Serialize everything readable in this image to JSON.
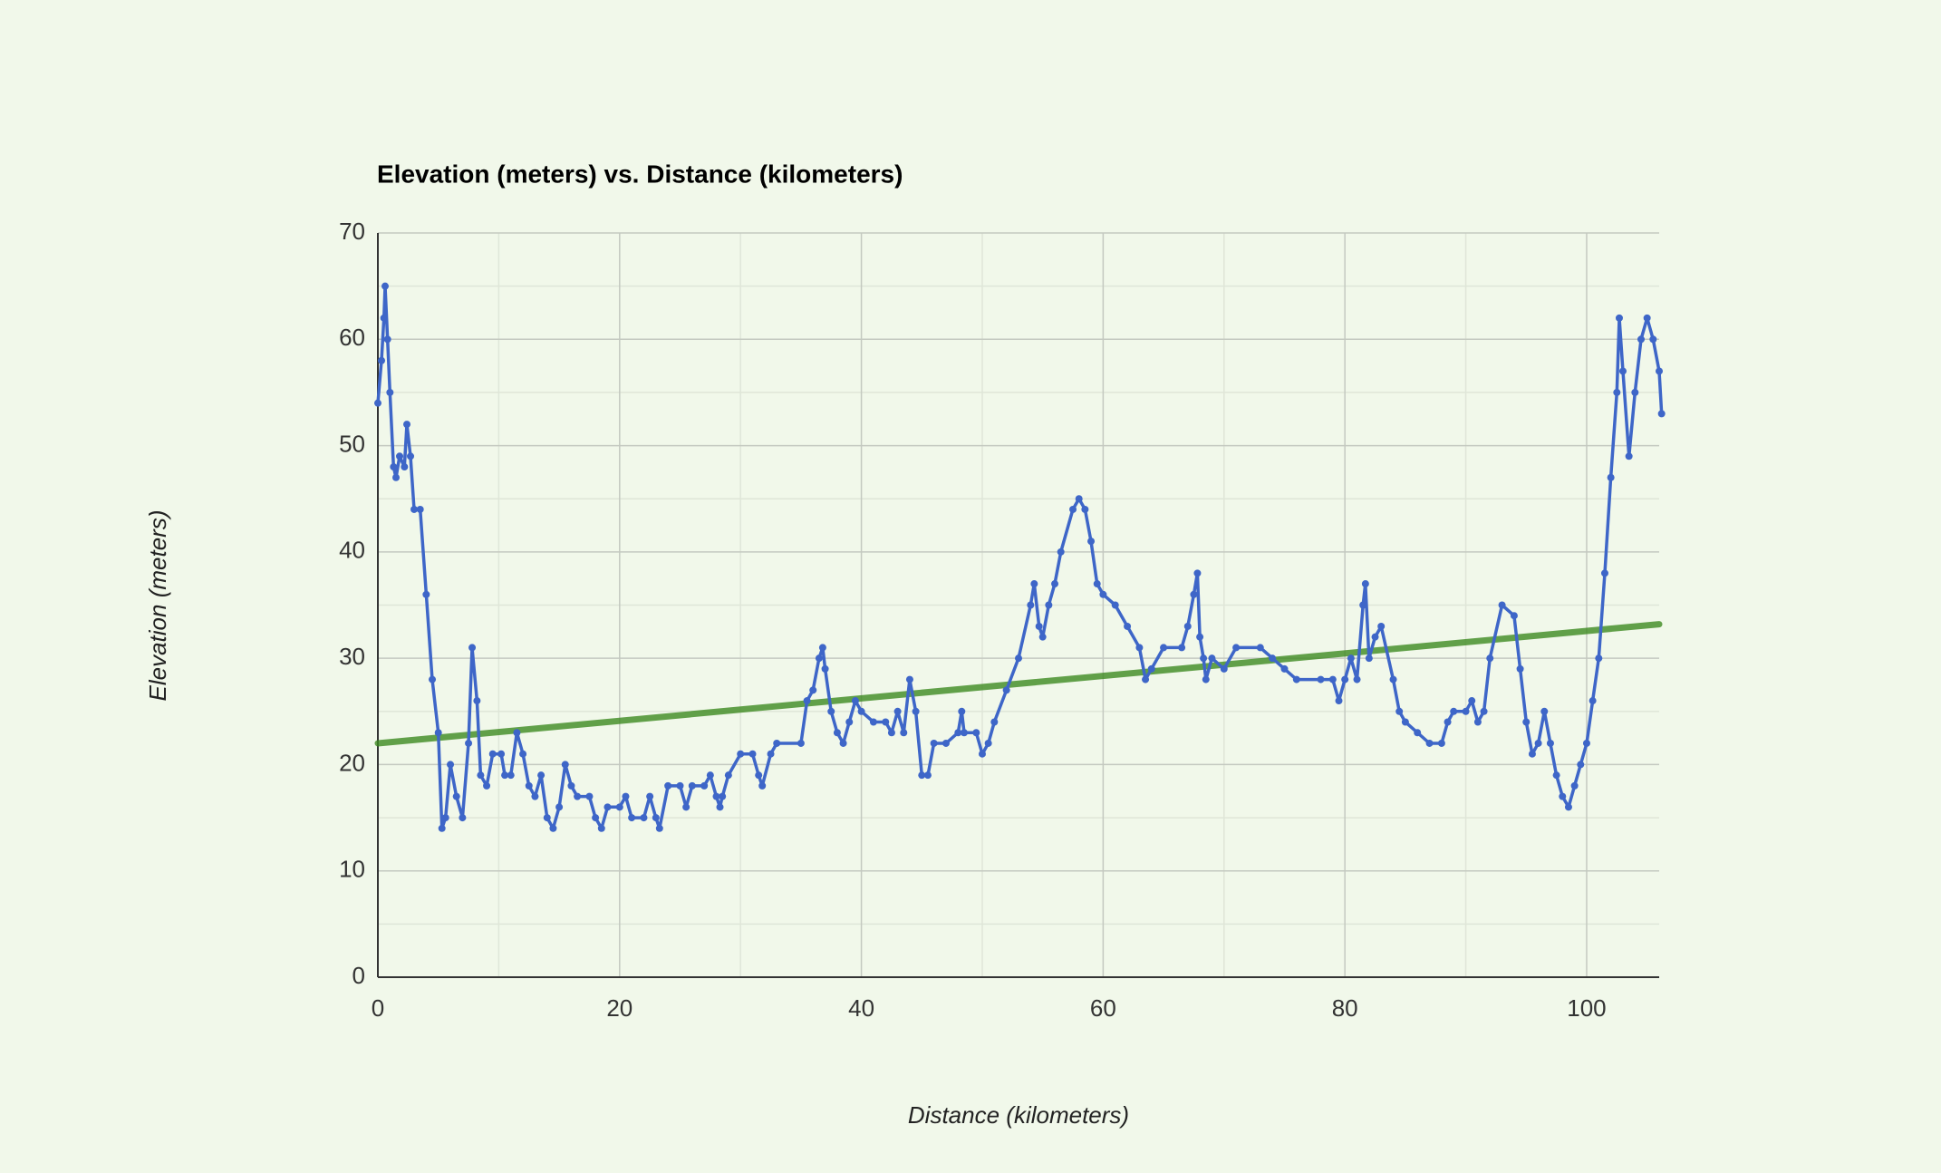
{
  "chart_data": {
    "type": "line",
    "title": "Elevation (meters) vs. Distance (kilometers)",
    "x_label": "Distance (kilometers)",
    "y_label": "Elevation (meters)",
    "xlim": [
      0,
      106
    ],
    "ylim": [
      0,
      70
    ],
    "xticks": [
      0,
      20,
      40,
      60,
      80,
      100
    ],
    "yticks": [
      0,
      10,
      20,
      30,
      40,
      50,
      60,
      70
    ],
    "xminorticks": [
      10,
      30,
      50,
      70,
      90
    ],
    "yminorticks": [
      5,
      15,
      25,
      35,
      45,
      55,
      65
    ],
    "grid": true,
    "series": [
      {
        "color": "#3e66c8",
        "x": [
          0,
          0.3,
          0.5,
          0.6,
          0.8,
          1,
          1.3,
          1.5,
          1.8,
          2.2,
          2.4,
          2.7,
          3,
          3.5,
          4,
          4.5,
          5,
          5.3,
          5.6,
          6,
          6.5,
          7,
          7.5,
          7.8,
          8.2,
          8.5,
          9,
          9.5,
          10.2,
          10.5,
          11,
          11.5,
          12,
          12.5,
          13,
          13.5,
          14,
          14.5,
          15,
          15.5,
          16,
          16.5,
          17.5,
          18,
          18.5,
          19,
          20,
          20.5,
          21,
          22,
          22.5,
          23,
          23.3,
          24,
          25,
          25.5,
          26,
          27,
          27.5,
          28,
          28.3,
          28.5,
          29,
          30,
          31,
          31.5,
          31.8,
          32.5,
          33,
          35,
          35.5,
          36,
          36.5,
          36.8,
          37,
          37.5,
          38,
          38.5,
          39,
          39.5,
          40,
          41,
          42,
          42.5,
          43,
          43.5,
          44,
          44.5,
          45,
          45.5,
          46,
          47,
          48,
          48.3,
          48.5,
          49.5,
          50,
          50.5,
          51,
          52,
          53,
          54,
          54.3,
          54.7,
          55,
          55.5,
          56,
          56.5,
          57.5,
          58,
          58.5,
          59,
          59.5,
          60,
          61,
          62,
          63,
          63.5,
          64,
          65,
          66.5,
          67,
          67.5,
          67.8,
          68,
          68.3,
          68.5,
          69,
          70,
          71,
          73,
          74,
          75,
          76,
          78,
          79,
          79.5,
          80,
          80.5,
          81,
          81.5,
          81.7,
          82,
          82.5,
          83,
          84,
          84.5,
          85,
          86,
          87,
          88,
          88.5,
          89,
          90,
          90.5,
          91,
          91.5,
          92,
          93,
          94,
          94.5,
          95,
          95.5,
          96,
          96.5,
          97,
          97.5,
          98,
          98.5,
          99,
          99.5,
          100,
          100.5,
          101,
          101.5,
          102,
          102.5,
          102.7,
          103,
          103.5,
          104,
          104.5,
          105,
          105.5,
          106,
          106.2
        ],
        "values": [
          54,
          58,
          62,
          65,
          60,
          55,
          48,
          47,
          49,
          48,
          52,
          49,
          44,
          44,
          36,
          28,
          23,
          14,
          15,
          20,
          17,
          15,
          22,
          31,
          26,
          19,
          18,
          21,
          21,
          19,
          19,
          23,
          21,
          18,
          17,
          19,
          15,
          14,
          16,
          20,
          18,
          17,
          17,
          15,
          14,
          16,
          16,
          17,
          15,
          15,
          17,
          15,
          14,
          18,
          18,
          16,
          18,
          18,
          19,
          17,
          16,
          17,
          19,
          21,
          21,
          19,
          18,
          21,
          22,
          22,
          26,
          27,
          30,
          31,
          29,
          25,
          23,
          22,
          24,
          26,
          25,
          24,
          24,
          23,
          25,
          23,
          28,
          25,
          19,
          19,
          22,
          22,
          23,
          25,
          23,
          23,
          21,
          22,
          24,
          27,
          30,
          35,
          37,
          33,
          32,
          35,
          37,
          40,
          44,
          45,
          44,
          41,
          37,
          36,
          35,
          33,
          31,
          28,
          29,
          31,
          31,
          33,
          36,
          38,
          32,
          30,
          28,
          30,
          29,
          31,
          31,
          30,
          29,
          28,
          28,
          28,
          26,
          28,
          30,
          28,
          35,
          37,
          30,
          32,
          33,
          28,
          25,
          24,
          23,
          22,
          22,
          24,
          25,
          25,
          26,
          24,
          25,
          30,
          35,
          34,
          29,
          24,
          21,
          22,
          25,
          22,
          19,
          17,
          16,
          18,
          20,
          22,
          26,
          30,
          38,
          47,
          55,
          62,
          57,
          49,
          55,
          60,
          62,
          60,
          57,
          53
        ]
      }
    ],
    "trendline": {
      "color": "#3d8a20",
      "x": [
        0,
        106
      ],
      "values": [
        22,
        33.2
      ]
    }
  }
}
